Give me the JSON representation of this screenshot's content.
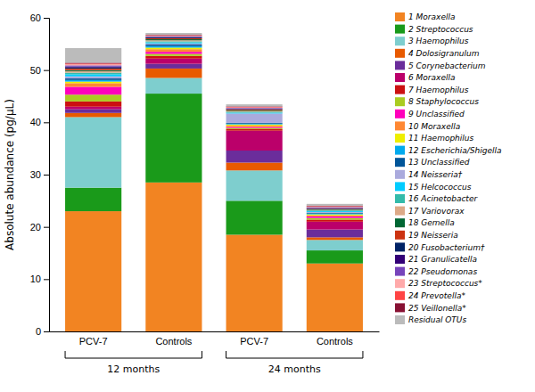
{
  "chart_data": {
    "type": "bar",
    "stacked": true,
    "ylabel": "Absolute abundance (pg/μL)",
    "categories": [
      "PCV-7",
      "Controls",
      "PCV-7",
      "Controls"
    ],
    "annotations": [
      {
        "text": "12 months"
      },
      {
        "text": "24 months"
      }
    ],
    "ylim": [
      0,
      60
    ],
    "yticks": [
      0,
      10,
      20,
      30,
      40,
      50,
      60
    ],
    "grid": false,
    "legend": "right",
    "series": [
      {
        "name": "1 Moraxella",
        "color": "#F28422",
        "values": [
          23.0,
          28.5,
          18.5,
          13.0
        ]
      },
      {
        "name": "2 Streptococcus",
        "color": "#1A9A1A",
        "values": [
          4.5,
          17.0,
          6.5,
          2.5
        ]
      },
      {
        "name": "3 Haemophilus",
        "color": "#7ECECE",
        "values": [
          13.5,
          3.0,
          5.8,
          2.0
        ]
      },
      {
        "name": "4 Dolosigranulum",
        "color": "#E85A00",
        "values": [
          0.8,
          1.8,
          1.5,
          0.5
        ]
      },
      {
        "name": "5 Corynebacterium",
        "color": "#6B2D9B",
        "values": [
          0.7,
          0.9,
          2.3,
          1.5
        ]
      },
      {
        "name": "6 Moraxella",
        "color": "#BB006A",
        "values": [
          0.5,
          1.0,
          3.8,
          1.5
        ]
      },
      {
        "name": "7 Haemophilus",
        "color": "#CC1111",
        "values": [
          1.0,
          0.5,
          0.3,
          0.4
        ]
      },
      {
        "name": "8 Staphylococcus",
        "color": "#AACC22",
        "values": [
          1.3,
          0.4,
          0.2,
          0.3
        ]
      },
      {
        "name": "9 Unclassified",
        "color": "#FF00BB",
        "values": [
          1.5,
          0.4,
          0.2,
          0.3
        ]
      },
      {
        "name": "10 Moraxella",
        "color": "#FF8833",
        "values": [
          0.7,
          0.5,
          0.3,
          0.2
        ]
      },
      {
        "name": "11 Haemophilus",
        "color": "#EEEE00",
        "values": [
          0.3,
          0.3,
          0.2,
          0.2
        ]
      },
      {
        "name": "12 Escherichia/Shigella",
        "color": "#00AAEE",
        "values": [
          0.3,
          0.3,
          0.15,
          0.15
        ]
      },
      {
        "name": "13 Unclassified",
        "color": "#005599",
        "values": [
          0.3,
          0.3,
          0.15,
          0.15
        ]
      },
      {
        "name": "14 Neisseria†",
        "color": "#AAAADD",
        "values": [
          0.4,
          0.2,
          1.8,
          0.15
        ]
      },
      {
        "name": "15 Helcococcus",
        "color": "#00CCFF",
        "values": [
          0.4,
          0.2,
          0.15,
          0.15
        ]
      },
      {
        "name": "16 Acinetobacter",
        "color": "#33BBAA",
        "values": [
          0.3,
          0.2,
          0.15,
          0.15
        ]
      },
      {
        "name": "17 Variovorax",
        "color": "#DDAA88",
        "values": [
          0.3,
          0.2,
          0.15,
          0.1
        ]
      },
      {
        "name": "18 Gemella",
        "color": "#006633",
        "values": [
          0.2,
          0.2,
          0.15,
          0.1
        ]
      },
      {
        "name": "19 Neisseria",
        "color": "#CC3311",
        "values": [
          0.3,
          0.2,
          0.15,
          0.1
        ]
      },
      {
        "name": "20 Fusobacterium†",
        "color": "#002266",
        "values": [
          0.2,
          0.15,
          0.1,
          0.1
        ]
      },
      {
        "name": "21 Granulicatella",
        "color": "#330077",
        "values": [
          0.2,
          0.1,
          0.1,
          0.1
        ]
      },
      {
        "name": "22 Pseudomonas",
        "color": "#7744BB",
        "values": [
          0.2,
          0.1,
          0.1,
          0.1
        ]
      },
      {
        "name": "23 Streptococcus*",
        "color": "#FFAAAA",
        "values": [
          0.2,
          0.1,
          0.1,
          0.1
        ]
      },
      {
        "name": "24 Prevotella*",
        "color": "#FF4444",
        "values": [
          0.15,
          0.1,
          0.1,
          0.1
        ]
      },
      {
        "name": "25 Veillonella*",
        "color": "#881133",
        "values": [
          0.15,
          0.1,
          0.1,
          0.1
        ]
      },
      {
        "name": "Residual OTUs",
        "color": "#BBBBBB",
        "values": [
          2.8,
          0.35,
          0.4,
          0.35
        ]
      }
    ]
  }
}
